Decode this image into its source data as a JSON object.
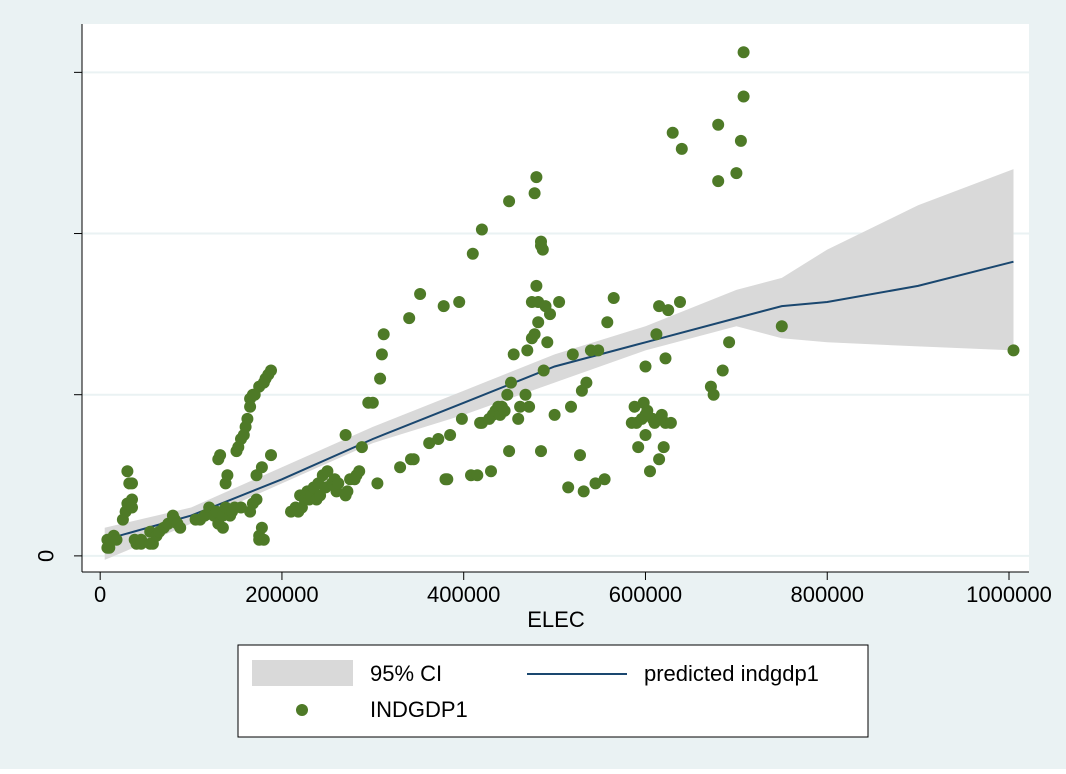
{
  "chart_data": {
    "type": "scatter",
    "title": "",
    "xlabel": "ELEC",
    "ylabel": "",
    "xlim": [
      -20000,
      1022000
    ],
    "ylim": [
      -4,
      132
    ],
    "x_ticks": [
      0,
      200000,
      400000,
      600000,
      800000,
      1000000
    ],
    "x_tick_labels": [
      "0",
      "200000",
      "400000",
      "600000",
      "800000",
      "1000000"
    ],
    "y_ticks": [
      0,
      40,
      80,
      120
    ],
    "y_tick_labels": [
      "0",
      "",
      "",
      ""
    ],
    "grid": true,
    "legend": {
      "placement": "bottom",
      "entries": [
        "95% CI",
        "predicted indgdp1",
        "INDGDP1"
      ]
    },
    "colors": {
      "page_background": "#eaf2f3",
      "plot_background": "#ffffff",
      "grid": "#eaf2f3",
      "scatter": "#4e7a27",
      "line": "#1a476f",
      "ci": "#d9d9d9"
    },
    "series": [
      {
        "name": "95% CI",
        "kind": "band",
        "x": [
          5000,
          100000,
          200000,
          300000,
          400000,
          500000,
          600000,
          700000,
          750000,
          800000,
          900000,
          1005000
        ],
        "lower": [
          -1,
          8,
          18,
          28,
          35,
          43,
          51,
          57,
          54,
          53,
          52,
          51
        ],
        "upper": [
          7,
          12,
          22,
          32,
          41,
          50,
          57,
          66,
          69,
          76,
          87,
          96
        ]
      },
      {
        "name": "predicted indgdp1",
        "kind": "line",
        "x": [
          5000,
          100000,
          200000,
          300000,
          400000,
          500000,
          600000,
          700000,
          750000,
          800000,
          900000,
          1005000
        ],
        "y": [
          4,
          10,
          19,
          29,
          38,
          47,
          53,
          59,
          62,
          63,
          67,
          73
        ]
      },
      {
        "name": "INDGDP1",
        "kind": "scatter",
        "points": [
          [
            8000,
            2
          ],
          [
            8000,
            4
          ],
          [
            10000,
            2
          ],
          [
            12000,
            4
          ],
          [
            15000,
            5
          ],
          [
            18000,
            4
          ],
          [
            25000,
            9
          ],
          [
            28000,
            11
          ],
          [
            30000,
            13
          ],
          [
            30000,
            21
          ],
          [
            32000,
            18
          ],
          [
            35000,
            18
          ],
          [
            35000,
            14
          ],
          [
            35000,
            12
          ],
          [
            38000,
            4
          ],
          [
            40000,
            3
          ],
          [
            45000,
            4
          ],
          [
            45000,
            3
          ],
          [
            55000,
            6
          ],
          [
            55000,
            3
          ],
          [
            58000,
            3
          ],
          [
            62000,
            5
          ],
          [
            65000,
            6
          ],
          [
            70000,
            7
          ],
          [
            75000,
            8
          ],
          [
            80000,
            10
          ],
          [
            82000,
            9
          ],
          [
            85000,
            8
          ],
          [
            88000,
            7
          ],
          [
            105000,
            9
          ],
          [
            110000,
            9
          ],
          [
            115000,
            10
          ],
          [
            120000,
            12
          ],
          [
            125000,
            10
          ],
          [
            128000,
            11
          ],
          [
            130000,
            8
          ],
          [
            130000,
            24
          ],
          [
            132000,
            25
          ],
          [
            135000,
            7
          ],
          [
            135000,
            10
          ],
          [
            138000,
            12
          ],
          [
            138000,
            18
          ],
          [
            140000,
            20
          ],
          [
            143000,
            10
          ],
          [
            145000,
            11
          ],
          [
            148000,
            12
          ],
          [
            150000,
            26
          ],
          [
            152000,
            27
          ],
          [
            155000,
            29
          ],
          [
            155000,
            12
          ],
          [
            158000,
            30
          ],
          [
            160000,
            32
          ],
          [
            162000,
            34
          ],
          [
            165000,
            37
          ],
          [
            165000,
            39
          ],
          [
            165000,
            11
          ],
          [
            168000,
            40
          ],
          [
            168000,
            13
          ],
          [
            170000,
            40
          ],
          [
            172000,
            14
          ],
          [
            172000,
            20
          ],
          [
            175000,
            4
          ],
          [
            175000,
            5
          ],
          [
            175000,
            42
          ],
          [
            178000,
            7
          ],
          [
            178000,
            22
          ],
          [
            180000,
            4
          ],
          [
            180000,
            43
          ],
          [
            182000,
            44
          ],
          [
            185000,
            45
          ],
          [
            188000,
            46
          ],
          [
            188000,
            25
          ],
          [
            210000,
            11
          ],
          [
            215000,
            12
          ],
          [
            218000,
            11
          ],
          [
            220000,
            15
          ],
          [
            222000,
            12
          ],
          [
            225000,
            14
          ],
          [
            228000,
            16
          ],
          [
            230000,
            14
          ],
          [
            232000,
            15
          ],
          [
            235000,
            17
          ],
          [
            238000,
            14
          ],
          [
            240000,
            18
          ],
          [
            242000,
            15
          ],
          [
            245000,
            20
          ],
          [
            248000,
            17
          ],
          [
            250000,
            21
          ],
          [
            255000,
            18
          ],
          [
            258000,
            19
          ],
          [
            260000,
            16
          ],
          [
            262000,
            18
          ],
          [
            270000,
            15
          ],
          [
            270000,
            30
          ],
          [
            272000,
            16
          ],
          [
            275000,
            19
          ],
          [
            280000,
            19
          ],
          [
            282000,
            20
          ],
          [
            285000,
            21
          ],
          [
            288000,
            27
          ],
          [
            295000,
            38
          ],
          [
            300000,
            38
          ],
          [
            305000,
            18
          ],
          [
            308000,
            44
          ],
          [
            310000,
            50
          ],
          [
            312000,
            55
          ],
          [
            330000,
            22
          ],
          [
            340000,
            59
          ],
          [
            342000,
            24
          ],
          [
            345000,
            24
          ],
          [
            352000,
            65
          ],
          [
            362000,
            28
          ],
          [
            372000,
            29
          ],
          [
            378000,
            62
          ],
          [
            380000,
            19
          ],
          [
            382000,
            19
          ],
          [
            385000,
            30
          ],
          [
            395000,
            63
          ],
          [
            398000,
            34
          ],
          [
            408000,
            20
          ],
          [
            410000,
            75
          ],
          [
            415000,
            20
          ],
          [
            418000,
            33
          ],
          [
            420000,
            81
          ],
          [
            420000,
            33
          ],
          [
            428000,
            34
          ],
          [
            430000,
            21
          ],
          [
            432000,
            35
          ],
          [
            435000,
            36
          ],
          [
            438000,
            37
          ],
          [
            440000,
            35
          ],
          [
            442000,
            37
          ],
          [
            445000,
            36
          ],
          [
            448000,
            40
          ],
          [
            450000,
            26
          ],
          [
            450000,
            88
          ],
          [
            452000,
            43
          ],
          [
            455000,
            50
          ],
          [
            460000,
            34
          ],
          [
            462000,
            37
          ],
          [
            468000,
            40
          ],
          [
            470000,
            51
          ],
          [
            472000,
            37
          ],
          [
            475000,
            54
          ],
          [
            475000,
            63
          ],
          [
            478000,
            55
          ],
          [
            478000,
            90
          ],
          [
            480000,
            94
          ],
          [
            480000,
            67
          ],
          [
            482000,
            63
          ],
          [
            482000,
            58
          ],
          [
            485000,
            26
          ],
          [
            485000,
            77
          ],
          [
            485000,
            78
          ],
          [
            487000,
            76
          ],
          [
            488000,
            46
          ],
          [
            490000,
            62
          ],
          [
            492000,
            53
          ],
          [
            495000,
            60
          ],
          [
            500000,
            35
          ],
          [
            505000,
            63
          ],
          [
            515000,
            17
          ],
          [
            518000,
            37
          ],
          [
            520000,
            50
          ],
          [
            528000,
            25
          ],
          [
            530000,
            41
          ],
          [
            532000,
            16
          ],
          [
            535000,
            43
          ],
          [
            540000,
            51
          ],
          [
            545000,
            18
          ],
          [
            548000,
            51
          ],
          [
            555000,
            19
          ],
          [
            558000,
            58
          ],
          [
            565000,
            64
          ],
          [
            585000,
            33
          ],
          [
            588000,
            37
          ],
          [
            590000,
            33
          ],
          [
            592000,
            27
          ],
          [
            596000,
            34
          ],
          [
            598000,
            38
          ],
          [
            600000,
            30
          ],
          [
            600000,
            35
          ],
          [
            600000,
            47
          ],
          [
            602000,
            36
          ],
          [
            605000,
            21
          ],
          [
            608000,
            34
          ],
          [
            610000,
            33
          ],
          [
            612000,
            55
          ],
          [
            615000,
            24
          ],
          [
            615000,
            62
          ],
          [
            618000,
            35
          ],
          [
            620000,
            27
          ],
          [
            622000,
            33
          ],
          [
            622000,
            49
          ],
          [
            625000,
            61
          ],
          [
            628000,
            33
          ],
          [
            630000,
            105
          ],
          [
            638000,
            63
          ],
          [
            640000,
            101
          ],
          [
            672000,
            42
          ],
          [
            675000,
            40
          ],
          [
            680000,
            93
          ],
          [
            680000,
            107
          ],
          [
            685000,
            46
          ],
          [
            692000,
            53
          ],
          [
            700000,
            95
          ],
          [
            705000,
            103
          ],
          [
            708000,
            114
          ],
          [
            708000,
            125
          ],
          [
            750000,
            57
          ],
          [
            1005000,
            51
          ]
        ]
      }
    ]
  }
}
